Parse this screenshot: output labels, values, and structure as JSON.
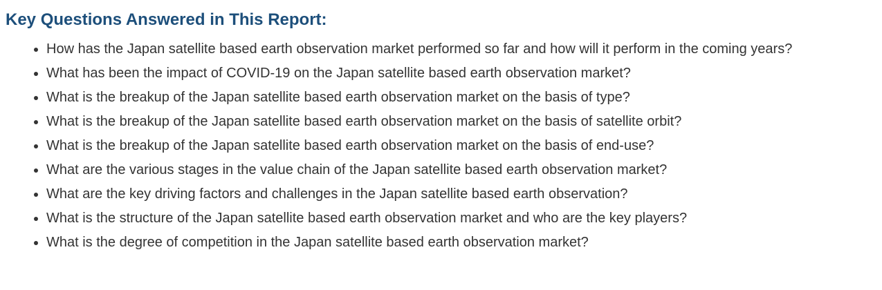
{
  "section": {
    "title": "Key Questions Answered in This Report:",
    "questions": [
      "How has the Japan satellite based earth observation market performed so far and how will it perform in the coming years?",
      "What has been the impact of COVID-19 on the Japan satellite based earth observation market?",
      "What is the breakup of the Japan satellite based earth observation market on the basis of type?",
      "What is the breakup of the Japan satellite based earth observation market on the basis of satellite orbit?",
      "What is the breakup of the Japan satellite based earth observation market on the basis of end-use?",
      "What are the various stages in the value chain of the Japan satellite based earth observation market?",
      "What are the key driving factors and challenges in the Japan satellite based earth observation?",
      "What is the structure of the Japan satellite based earth observation market and who are the key players?",
      "What is the degree of competition in the Japan satellite based earth observation market?"
    ]
  }
}
